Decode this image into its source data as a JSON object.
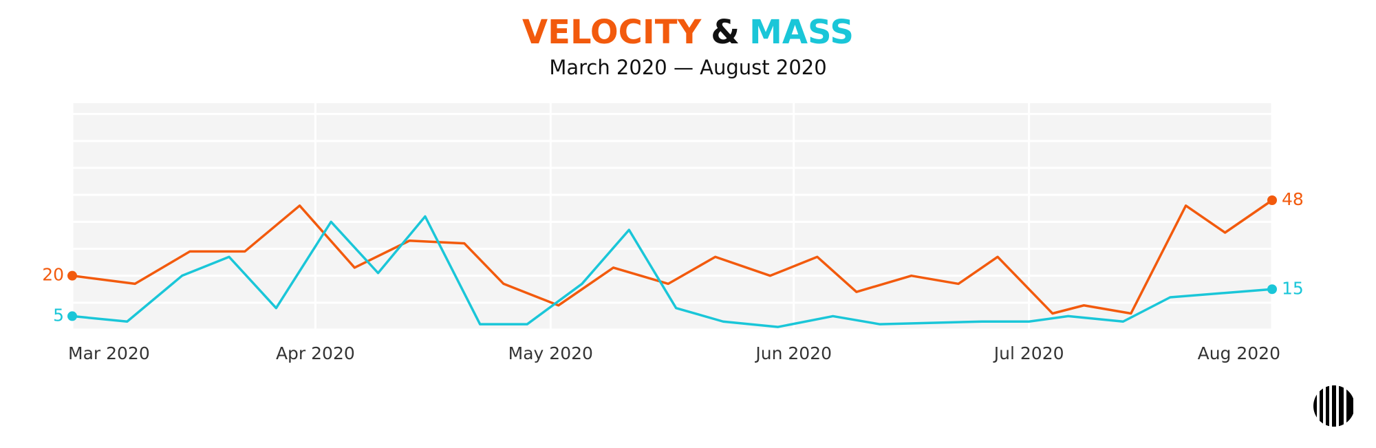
{
  "chart_data": {
    "type": "line",
    "title": {
      "parts": [
        "VELOCITY",
        "&",
        "MASS"
      ]
    },
    "subtitle": "March 2020 — August 2020",
    "xlim": [
      0,
      153
    ],
    "xticks": [
      {
        "value": 0,
        "label": "Mar 2020"
      },
      {
        "value": 31,
        "label": "Apr 2020"
      },
      {
        "value": 61,
        "label": "May 2020"
      },
      {
        "value": 92,
        "label": "Jun 2020"
      },
      {
        "value": 122,
        "label": "Jul 2020"
      },
      {
        "value": 153,
        "label": "Aug 2020"
      }
    ],
    "ylim": [
      0,
      84
    ],
    "yticks": [
      0,
      10,
      20,
      30,
      40,
      50,
      60,
      70,
      80
    ],
    "grid": true,
    "title_color": "#111111",
    "series": [
      {
        "name": "VELOCITY",
        "color": "#f25a0d",
        "x": [
          0,
          8,
          15,
          22,
          29,
          36,
          43,
          50,
          55,
          62,
          69,
          76,
          82,
          89,
          95,
          100,
          107,
          113,
          118,
          125,
          129,
          135,
          142,
          147,
          153
        ],
        "values": [
          20,
          17,
          29,
          29,
          46,
          23,
          33,
          32,
          17,
          9,
          23,
          17,
          27,
          20,
          27,
          14,
          20,
          17,
          27,
          6,
          9,
          6,
          46,
          36,
          48
        ]
      },
      {
        "name": "MASS",
        "color": "#1ac6d8",
        "x": [
          0,
          7,
          14,
          20,
          26,
          33,
          39,
          45,
          52,
          58,
          65,
          71,
          77,
          83,
          90,
          97,
          103,
          116,
          122,
          127,
          134,
          140,
          153
        ],
        "values": [
          5,
          3,
          20,
          27,
          8,
          40,
          21,
          42,
          2,
          2,
          17,
          37,
          8,
          3,
          1,
          5,
          2,
          3,
          3,
          5,
          3,
          12,
          15
        ]
      }
    ]
  }
}
